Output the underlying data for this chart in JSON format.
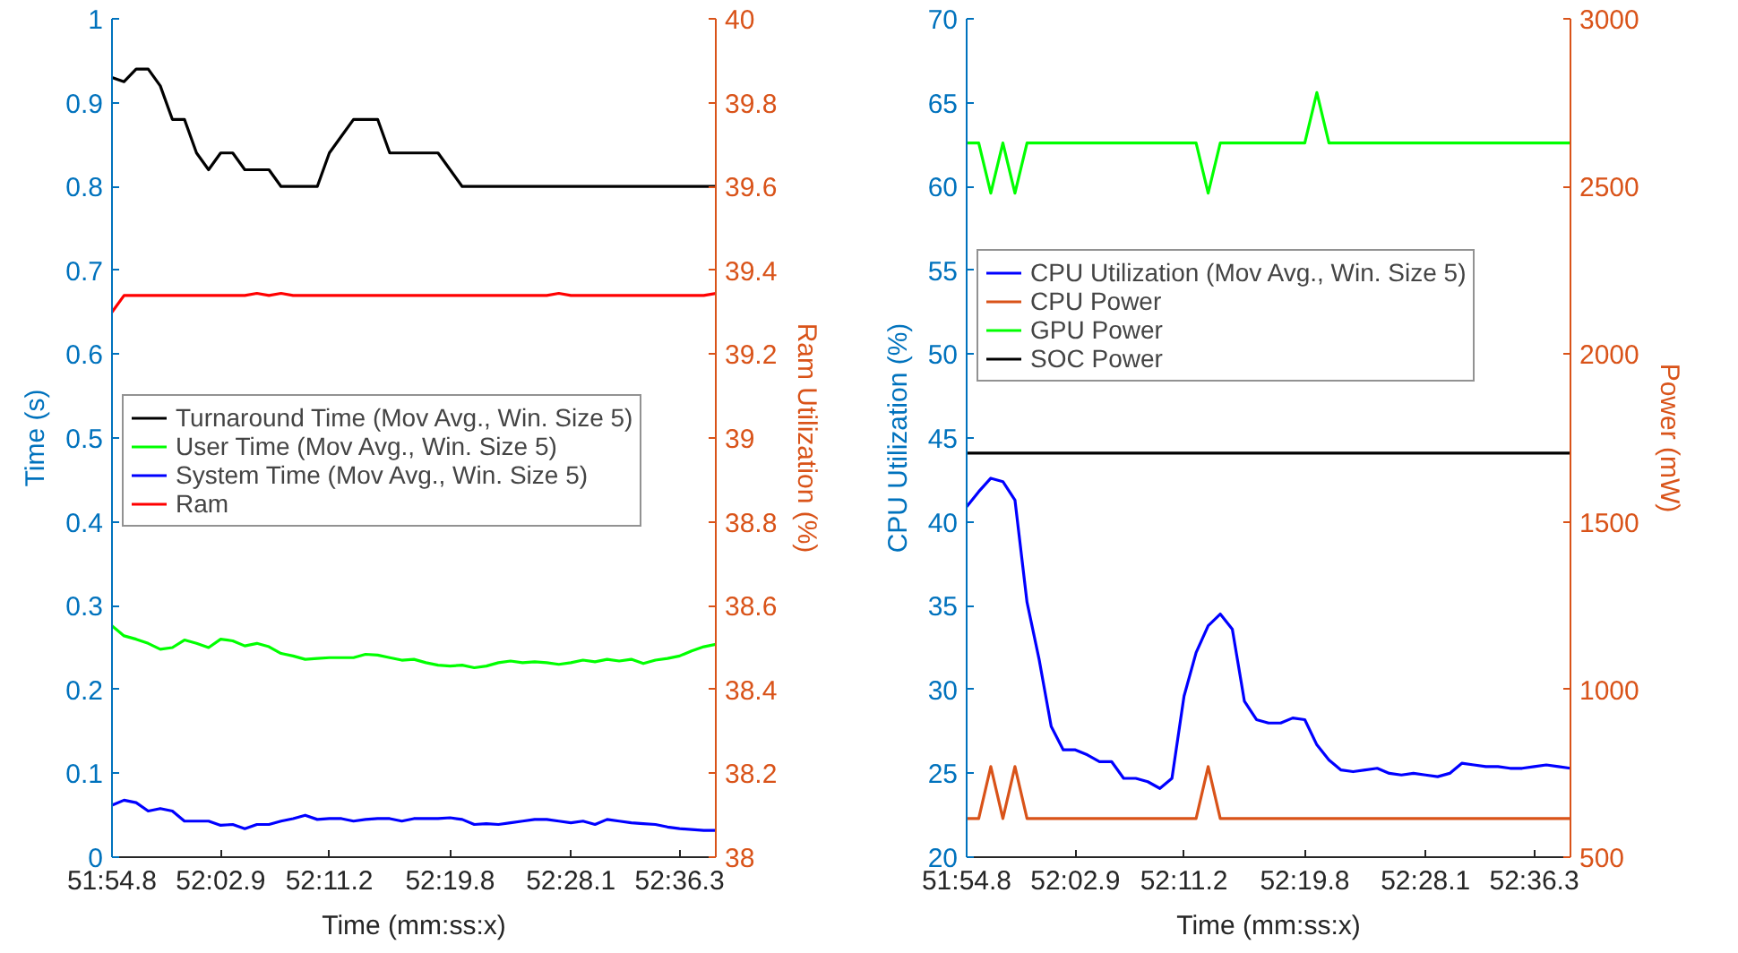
{
  "chart_data": [
    {
      "type": "line",
      "xlabel": "Time (mm:ss:x)",
      "ylabel": "Time (s)",
      "y2label": "Ram Utilization (%)",
      "categories": [
        "51:54.8",
        null,
        null,
        null,
        null,
        null,
        null,
        null,
        null,
        "52:02.9",
        null,
        null,
        null,
        null,
        null,
        null,
        null,
        null,
        "52:11.2",
        null,
        null,
        null,
        null,
        null,
        null,
        null,
        null,
        null,
        "52:19.8",
        null,
        null,
        null,
        null,
        null,
        null,
        null,
        null,
        null,
        "52:28.1",
        null,
        null,
        null,
        null,
        null,
        null,
        null,
        null,
        "52:36.3",
        null,
        null,
        null
      ],
      "ylim": [
        0,
        1
      ],
      "yticks": [
        0,
        0.1,
        0.2,
        0.3,
        0.4,
        0.5,
        0.6,
        0.7,
        0.8,
        0.9,
        1
      ],
      "y2lim": [
        38,
        40
      ],
      "y2ticks": [
        38,
        38.2,
        38.4,
        38.6,
        38.8,
        39,
        39.2,
        39.4,
        39.6,
        39.8,
        40
      ],
      "legend": "left",
      "grid": false,
      "series": [
        {
          "name": "Turnaround Time (Mov Avg., Win. Size 5)",
          "color": "#000000",
          "values": [
            0.93,
            0.925,
            0.94,
            0.94,
            0.92,
            0.88,
            0.88,
            0.84,
            0.82,
            0.84,
            0.84,
            0.82,
            0.82,
            0.82,
            0.8,
            0.8,
            0.8,
            0.8,
            0.84,
            0.86,
            0.88,
            0.88,
            0.88,
            0.84,
            0.84,
            0.84,
            0.84,
            0.84,
            0.82,
            0.8,
            0.8,
            0.8,
            0.8,
            0.8,
            0.8,
            0.8,
            0.8,
            0.8,
            0.8,
            0.8,
            0.8,
            0.8,
            0.8,
            0.8,
            0.8,
            0.8,
            0.8,
            0.8,
            0.8,
            0.8,
            0.8
          ]
        },
        {
          "name": "User Time (Mov Avg., Win. Size 5)",
          "color": "#00ff00",
          "values": [
            0.276,
            0.264,
            0.26,
            0.255,
            0.248,
            0.25,
            0.259,
            0.255,
            0.25,
            0.26,
            0.258,
            0.252,
            0.255,
            0.251,
            0.243,
            0.24,
            0.236,
            0.237,
            0.238,
            0.238,
            0.238,
            0.242,
            0.241,
            0.238,
            0.235,
            0.236,
            0.232,
            0.229,
            0.228,
            0.229,
            0.226,
            0.228,
            0.232,
            0.234,
            0.232,
            0.233,
            0.232,
            0.23,
            0.232,
            0.235,
            0.233,
            0.236,
            0.234,
            0.236,
            0.231,
            0.235,
            0.237,
            0.24,
            0.246,
            0.251,
            0.254
          ]
        },
        {
          "name": "System Time (Mov Avg., Win. Size 5)",
          "color": "#0000ff",
          "values": [
            0.062,
            0.068,
            0.065,
            0.055,
            0.058,
            0.055,
            0.043,
            0.043,
            0.043,
            0.038,
            0.039,
            0.034,
            0.039,
            0.039,
            0.043,
            0.046,
            0.05,
            0.045,
            0.046,
            0.046,
            0.043,
            0.045,
            0.046,
            0.046,
            0.043,
            0.046,
            0.046,
            0.046,
            0.047,
            0.045,
            0.039,
            0.04,
            0.039,
            0.041,
            0.043,
            0.045,
            0.045,
            0.043,
            0.041,
            0.043,
            0.039,
            0.045,
            0.043,
            0.041,
            0.04,
            0.039,
            0.036,
            0.034,
            0.033,
            0.032,
            0.032
          ]
        },
        {
          "name": "Ram",
          "color": "#ff0000",
          "axis": "y2",
          "values": [
            39.3,
            39.34,
            39.34,
            39.34,
            39.34,
            39.34,
            39.34,
            39.34,
            39.34,
            39.34,
            39.34,
            39.34,
            39.345,
            39.34,
            39.345,
            39.34,
            39.34,
            39.34,
            39.34,
            39.34,
            39.34,
            39.34,
            39.34,
            39.34,
            39.34,
            39.34,
            39.34,
            39.34,
            39.34,
            39.34,
            39.34,
            39.34,
            39.34,
            39.34,
            39.34,
            39.34,
            39.34,
            39.345,
            39.34,
            39.34,
            39.34,
            39.34,
            39.34,
            39.34,
            39.34,
            39.34,
            39.34,
            39.34,
            39.34,
            39.34,
            39.345
          ]
        }
      ]
    },
    {
      "type": "line",
      "xlabel": "Time (mm:ss:x)",
      "ylabel": "CPU Utilization (%)",
      "y2label": "Power (mW)",
      "categories": [
        "51:54.8",
        null,
        null,
        null,
        null,
        null,
        null,
        null,
        null,
        "52:02.9",
        null,
        null,
        null,
        null,
        null,
        null,
        null,
        null,
        "52:11.2",
        null,
        null,
        null,
        null,
        null,
        null,
        null,
        null,
        null,
        "52:19.8",
        null,
        null,
        null,
        null,
        null,
        null,
        null,
        null,
        null,
        "52:28.1",
        null,
        null,
        null,
        null,
        null,
        null,
        null,
        null,
        "52:36.3",
        null,
        null,
        null
      ],
      "ylim": [
        20,
        70
      ],
      "yticks": [
        20,
        25,
        30,
        35,
        40,
        45,
        50,
        55,
        60,
        65,
        70
      ],
      "y2lim": [
        500,
        3000
      ],
      "y2ticks": [
        500,
        1000,
        1500,
        2000,
        2500,
        3000
      ],
      "legend": "left",
      "grid": false,
      "series": [
        {
          "name": "CPU Utilization (Mov Avg., Win. Size 5)",
          "color": "#0000ff",
          "values": [
            40.9,
            41.8,
            42.6,
            42.4,
            41.3,
            35.2,
            31.8,
            27.8,
            26.4,
            26.4,
            26.1,
            25.7,
            25.7,
            24.7,
            24.7,
            24.5,
            24.1,
            24.7,
            29.6,
            32.2,
            33.8,
            34.5,
            33.6,
            29.3,
            28.2,
            28.0,
            28.0,
            28.3,
            28.2,
            26.7,
            25.8,
            25.2,
            25.1,
            25.2,
            25.3,
            25.0,
            24.9,
            25.0,
            24.9,
            24.8,
            25.0,
            25.6,
            25.5,
            25.4,
            25.4,
            25.3,
            25.3,
            25.4,
            25.5,
            25.4,
            25.3
          ]
        },
        {
          "name": "CPU Power",
          "color": "#d95319",
          "axis": "y2",
          "values": [
            615,
            615,
            770,
            615,
            770,
            615,
            615,
            615,
            615,
            615,
            615,
            615,
            615,
            615,
            615,
            615,
            615,
            615,
            615,
            615,
            770,
            615,
            615,
            615,
            615,
            615,
            615,
            615,
            615,
            615,
            615,
            615,
            615,
            615,
            615,
            615,
            615,
            615,
            615,
            615,
            615,
            615,
            615,
            615,
            615,
            615,
            615,
            615,
            615,
            615,
            615
          ]
        },
        {
          "name": "GPU Power",
          "color": "#00ff00",
          "axis": "y2",
          "values": [
            2630,
            2630,
            2480,
            2630,
            2480,
            2630,
            2630,
            2630,
            2630,
            2630,
            2630,
            2630,
            2630,
            2630,
            2630,
            2630,
            2630,
            2630,
            2630,
            2630,
            2480,
            2630,
            2630,
            2630,
            2630,
            2630,
            2630,
            2630,
            2630,
            2780,
            2630,
            2630,
            2630,
            2630,
            2630,
            2630,
            2630,
            2630,
            2630,
            2630,
            2630,
            2630,
            2630,
            2630,
            2630,
            2630,
            2630,
            2630,
            2630,
            2630,
            2630
          ]
        },
        {
          "name": "SOC Power",
          "color": "#000000",
          "axis": "y2",
          "values": [
            1705,
            1705,
            1705,
            1705,
            1705,
            1705,
            1705,
            1705,
            1705,
            1705,
            1705,
            1705,
            1705,
            1705,
            1705,
            1705,
            1705,
            1705,
            1705,
            1705,
            1705,
            1705,
            1705,
            1705,
            1705,
            1705,
            1705,
            1705,
            1705,
            1705,
            1705,
            1705,
            1705,
            1705,
            1705,
            1705,
            1705,
            1705,
            1705,
            1705,
            1705,
            1705,
            1705,
            1705,
            1705,
            1705,
            1705,
            1705,
            1705,
            1705,
            1705
          ]
        }
      ]
    }
  ]
}
